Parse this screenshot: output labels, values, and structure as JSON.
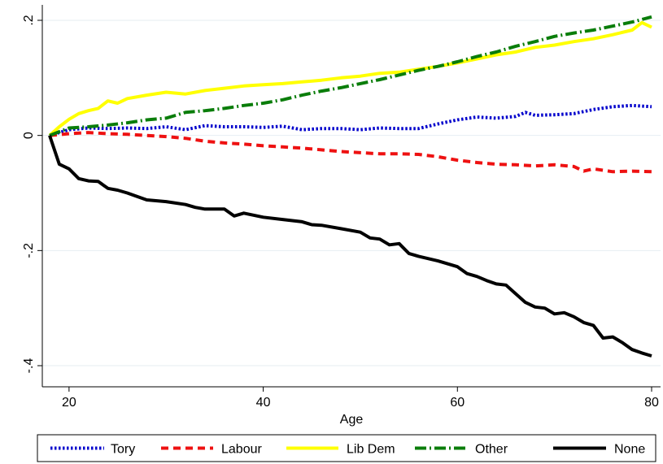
{
  "chart_data": {
    "type": "line",
    "title": "",
    "xlabel": "Age",
    "ylabel": "",
    "xlim": [
      18,
      80
    ],
    "ylim": [
      -0.4,
      0.2
    ],
    "xticks": [
      20,
      40,
      60,
      80
    ],
    "xtick_labels": [
      "20",
      "40",
      "60",
      "80"
    ],
    "yticks": [
      0.2,
      0,
      -0.2,
      -0.4
    ],
    "ytick_labels": [
      ".2",
      "0",
      "-.2",
      "-.4"
    ],
    "grid": "horizontal",
    "legend_position": "bottom",
    "series": [
      {
        "name": "Tory",
        "color": "#0000cc",
        "dash": "dotted",
        "points": [
          [
            18,
            0
          ],
          [
            20,
            0.01
          ],
          [
            22,
            0.013
          ],
          [
            24,
            0.012
          ],
          [
            26,
            0.013
          ],
          [
            28,
            0.012
          ],
          [
            30,
            0.015
          ],
          [
            32,
            0.01
          ],
          [
            34,
            0.017
          ],
          [
            36,
            0.015
          ],
          [
            38,
            0.015
          ],
          [
            40,
            0.014
          ],
          [
            42,
            0.016
          ],
          [
            44,
            0.01
          ],
          [
            46,
            0.012
          ],
          [
            48,
            0.012
          ],
          [
            50,
            0.01
          ],
          [
            52,
            0.013
          ],
          [
            54,
            0.012
          ],
          [
            56,
            0.012
          ],
          [
            58,
            0.02
          ],
          [
            60,
            0.027
          ],
          [
            62,
            0.032
          ],
          [
            64,
            0.03
          ],
          [
            66,
            0.033
          ],
          [
            67,
            0.04
          ],
          [
            68,
            0.035
          ],
          [
            70,
            0.036
          ],
          [
            72,
            0.038
          ],
          [
            74,
            0.045
          ],
          [
            76,
            0.05
          ],
          [
            78,
            0.052
          ],
          [
            80,
            0.05
          ]
        ]
      },
      {
        "name": "Labour",
        "color": "#ee1111",
        "dash": "dashed",
        "points": [
          [
            18,
            0
          ],
          [
            20,
            0.003
          ],
          [
            22,
            0.005
          ],
          [
            24,
            0.003
          ],
          [
            26,
            0.002
          ],
          [
            28,
            0
          ],
          [
            30,
            -0.002
          ],
          [
            32,
            -0.005
          ],
          [
            34,
            -0.01
          ],
          [
            36,
            -0.013
          ],
          [
            38,
            -0.015
          ],
          [
            40,
            -0.018
          ],
          [
            42,
            -0.02
          ],
          [
            44,
            -0.022
          ],
          [
            46,
            -0.025
          ],
          [
            48,
            -0.028
          ],
          [
            50,
            -0.03
          ],
          [
            52,
            -0.032
          ],
          [
            54,
            -0.032
          ],
          [
            56,
            -0.033
          ],
          [
            58,
            -0.037
          ],
          [
            60,
            -0.043
          ],
          [
            62,
            -0.047
          ],
          [
            64,
            -0.05
          ],
          [
            66,
            -0.051
          ],
          [
            68,
            -0.053
          ],
          [
            70,
            -0.051
          ],
          [
            72,
            -0.054
          ],
          [
            73,
            -0.062
          ],
          [
            74,
            -0.058
          ],
          [
            76,
            -0.063
          ],
          [
            78,
            -0.062
          ],
          [
            80,
            -0.063
          ]
        ]
      },
      {
        "name": "Lib Dem",
        "color": "#ffff00",
        "dash": "solid",
        "points": [
          [
            18,
            0
          ],
          [
            19,
            0.015
          ],
          [
            20,
            0.028
          ],
          [
            21,
            0.038
          ],
          [
            22,
            0.043
          ],
          [
            23,
            0.047
          ],
          [
            24,
            0.06
          ],
          [
            25,
            0.056
          ],
          [
            26,
            0.064
          ],
          [
            28,
            0.07
          ],
          [
            30,
            0.075
          ],
          [
            32,
            0.072
          ],
          [
            34,
            0.078
          ],
          [
            36,
            0.082
          ],
          [
            38,
            0.086
          ],
          [
            40,
            0.088
          ],
          [
            42,
            0.09
          ],
          [
            44,
            0.093
          ],
          [
            46,
            0.096
          ],
          [
            48,
            0.1
          ],
          [
            50,
            0.103
          ],
          [
            52,
            0.108
          ],
          [
            54,
            0.11
          ],
          [
            56,
            0.115
          ],
          [
            58,
            0.12
          ],
          [
            60,
            0.126
          ],
          [
            62,
            0.133
          ],
          [
            64,
            0.14
          ],
          [
            66,
            0.145
          ],
          [
            68,
            0.153
          ],
          [
            70,
            0.157
          ],
          [
            72,
            0.163
          ],
          [
            74,
            0.168
          ],
          [
            76,
            0.175
          ],
          [
            78,
            0.183
          ],
          [
            79,
            0.196
          ],
          [
            80,
            0.188
          ]
        ]
      },
      {
        "name": "Other",
        "color": "#0a7d0a",
        "dash": "dashdot",
        "points": [
          [
            18,
            0
          ],
          [
            20,
            0.013
          ],
          [
            22,
            0.015
          ],
          [
            24,
            0.018
          ],
          [
            26,
            0.022
          ],
          [
            28,
            0.027
          ],
          [
            30,
            0.03
          ],
          [
            32,
            0.04
          ],
          [
            34,
            0.043
          ],
          [
            36,
            0.047
          ],
          [
            38,
            0.052
          ],
          [
            40,
            0.056
          ],
          [
            42,
            0.062
          ],
          [
            44,
            0.07
          ],
          [
            46,
            0.077
          ],
          [
            48,
            0.083
          ],
          [
            50,
            0.09
          ],
          [
            52,
            0.097
          ],
          [
            54,
            0.105
          ],
          [
            56,
            0.113
          ],
          [
            58,
            0.12
          ],
          [
            60,
            0.128
          ],
          [
            62,
            0.137
          ],
          [
            64,
            0.145
          ],
          [
            66,
            0.155
          ],
          [
            68,
            0.163
          ],
          [
            70,
            0.172
          ],
          [
            72,
            0.178
          ],
          [
            74,
            0.183
          ],
          [
            76,
            0.19
          ],
          [
            78,
            0.197
          ],
          [
            80,
            0.206
          ]
        ]
      },
      {
        "name": "None",
        "color": "#000000",
        "dash": "solid",
        "points": [
          [
            18,
            0
          ],
          [
            19,
            -0.05
          ],
          [
            20,
            -0.058
          ],
          [
            21,
            -0.075
          ],
          [
            22,
            -0.079
          ],
          [
            23,
            -0.08
          ],
          [
            24,
            -0.092
          ],
          [
            25,
            -0.095
          ],
          [
            26,
            -0.1
          ],
          [
            27,
            -0.106
          ],
          [
            28,
            -0.112
          ],
          [
            30,
            -0.115
          ],
          [
            32,
            -0.12
          ],
          [
            33,
            -0.125
          ],
          [
            34,
            -0.128
          ],
          [
            36,
            -0.128
          ],
          [
            37,
            -0.14
          ],
          [
            38,
            -0.135
          ],
          [
            40,
            -0.142
          ],
          [
            42,
            -0.146
          ],
          [
            44,
            -0.15
          ],
          [
            45,
            -0.155
          ],
          [
            46,
            -0.156
          ],
          [
            48,
            -0.162
          ],
          [
            50,
            -0.168
          ],
          [
            51,
            -0.178
          ],
          [
            52,
            -0.18
          ],
          [
            53,
            -0.19
          ],
          [
            54,
            -0.188
          ],
          [
            55,
            -0.205
          ],
          [
            56,
            -0.21
          ],
          [
            58,
            -0.218
          ],
          [
            60,
            -0.228
          ],
          [
            61,
            -0.24
          ],
          [
            62,
            -0.245
          ],
          [
            63,
            -0.252
          ],
          [
            64,
            -0.258
          ],
          [
            65,
            -0.26
          ],
          [
            66,
            -0.275
          ],
          [
            67,
            -0.29
          ],
          [
            68,
            -0.298
          ],
          [
            69,
            -0.3
          ],
          [
            70,
            -0.31
          ],
          [
            71,
            -0.308
          ],
          [
            72,
            -0.315
          ],
          [
            73,
            -0.325
          ],
          [
            74,
            -0.33
          ],
          [
            75,
            -0.352
          ],
          [
            76,
            -0.35
          ],
          [
            77,
            -0.36
          ],
          [
            78,
            -0.372
          ],
          [
            79,
            -0.378
          ],
          [
            80,
            -0.383
          ]
        ]
      }
    ]
  }
}
